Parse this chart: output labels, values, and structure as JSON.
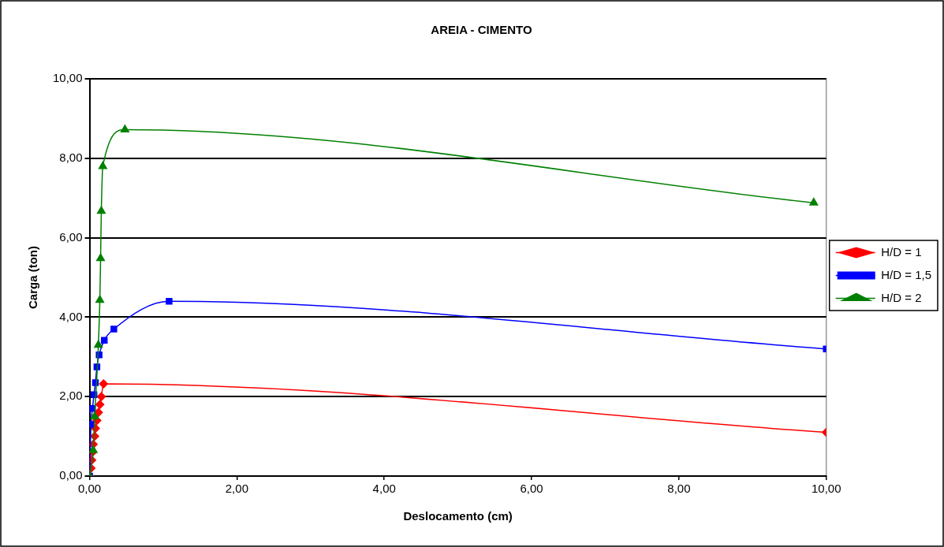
{
  "chart_data": {
    "type": "line",
    "title": "AREIA - CIMENTO",
    "xlabel": "Deslocamento (cm)",
    "ylabel": "Carga (ton)",
    "xlim": [
      0,
      10
    ],
    "ylim": [
      0,
      10
    ],
    "xticks": [
      {
        "value": 0,
        "label": "0,00"
      },
      {
        "value": 2,
        "label": "2,00"
      },
      {
        "value": 4,
        "label": "4,00"
      },
      {
        "value": 6,
        "label": "6,00"
      },
      {
        "value": 8,
        "label": "8,00"
      },
      {
        "value": 10,
        "label": "10,00"
      }
    ],
    "yticks": [
      {
        "value": 0,
        "label": "0,00"
      },
      {
        "value": 2,
        "label": "2,00"
      },
      {
        "value": 4,
        "label": "4,00"
      },
      {
        "value": 6,
        "label": "6,00"
      },
      {
        "value": 8,
        "label": "8,00"
      },
      {
        "value": 10,
        "label": "10,00"
      }
    ],
    "grid": "y",
    "legend": "right",
    "series": [
      {
        "name": "H/D = 1",
        "color": "#ff0000",
        "marker": "diamond",
        "x": [
          0,
          0.02,
          0.03,
          0.04,
          0.05,
          0.07,
          0.08,
          0.1,
          0.12,
          0.14,
          0.16,
          0.19,
          10
        ],
        "values": [
          0,
          0.2,
          0.4,
          0.6,
          0.8,
          1.0,
          1.2,
          1.4,
          1.6,
          1.8,
          2.0,
          2.32,
          1.1
        ]
      },
      {
        "name": "H/D = 1,5",
        "color": "#0000ff",
        "marker": "square",
        "x": [
          0,
          0.02,
          0.04,
          0.06,
          0.08,
          0.1,
          0.13,
          0.2,
          0.33,
          1.08,
          10
        ],
        "values": [
          0,
          1.3,
          1.7,
          2.05,
          2.35,
          2.75,
          3.05,
          3.42,
          3.7,
          4.4,
          3.2
        ]
      },
      {
        "name": "H/D = 2",
        "color": "#008000",
        "marker": "triangle",
        "x": [
          0,
          0.05,
          0.07,
          0.12,
          0.14,
          0.15,
          0.16,
          0.18,
          0.48,
          9.83
        ],
        "values": [
          0,
          0.65,
          1.5,
          3.3,
          4.43,
          5.48,
          6.67,
          7.8,
          8.72,
          6.88
        ]
      }
    ]
  }
}
